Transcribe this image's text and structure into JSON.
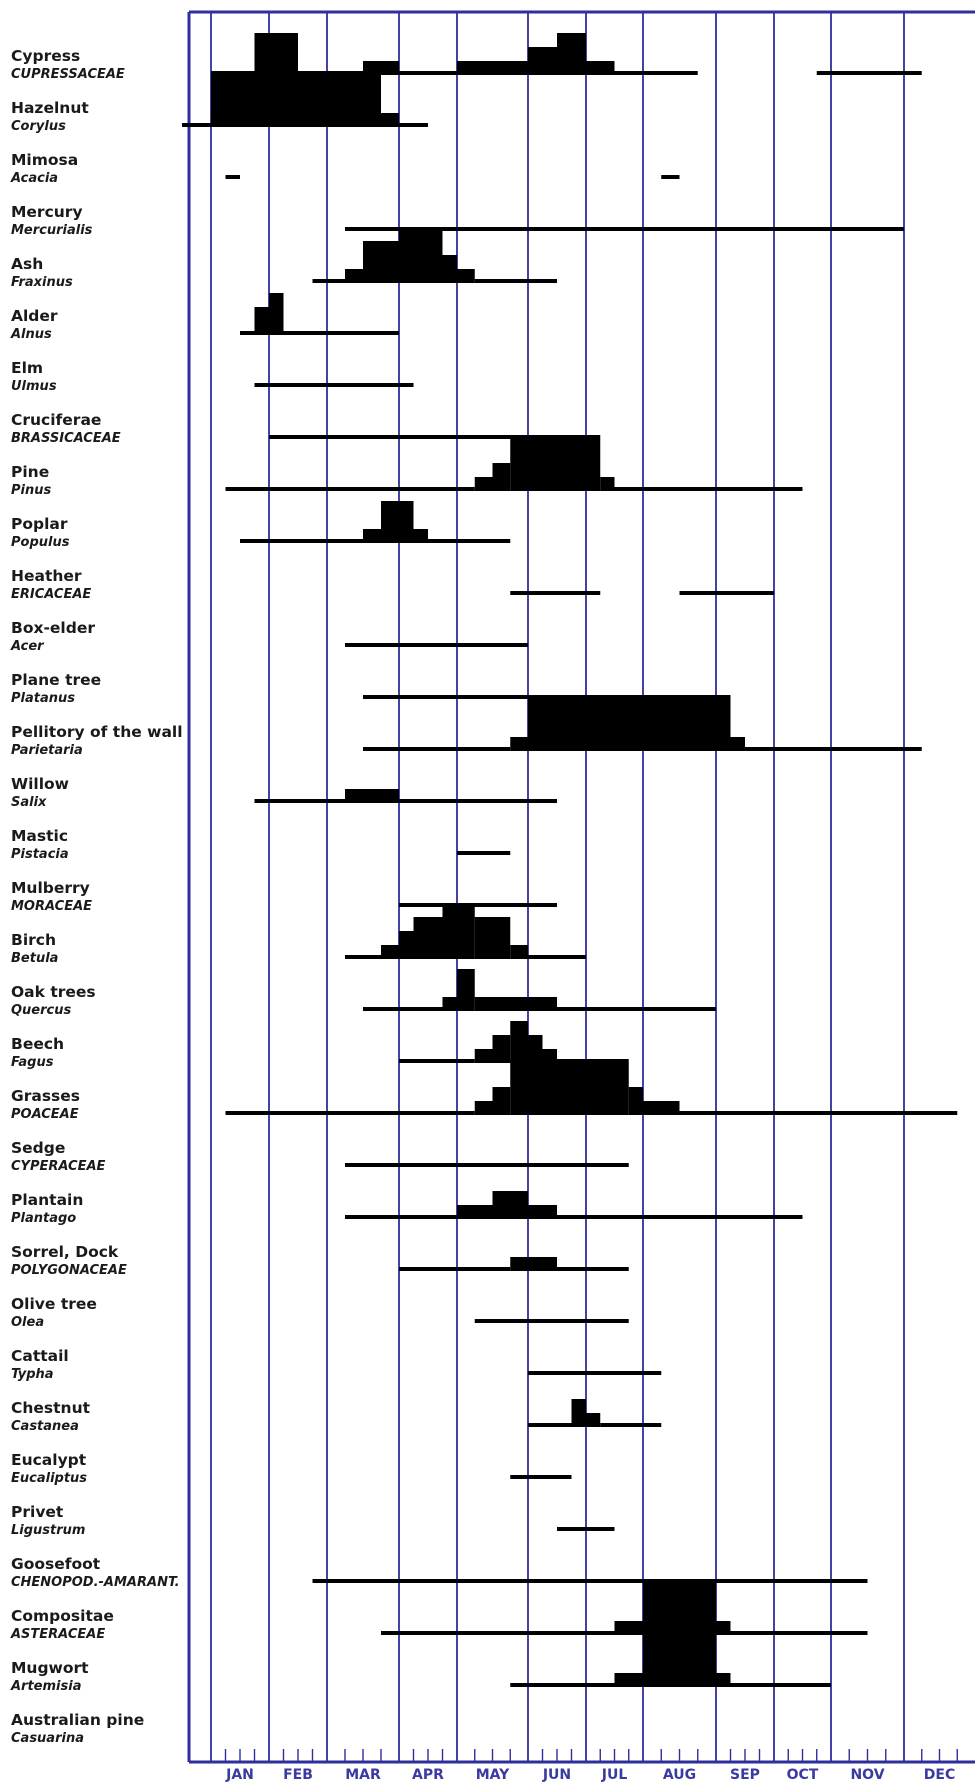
{
  "chart_data": {
    "type": "pollen-calendar",
    "title": "",
    "xlabel": "",
    "ylabel": "",
    "months": [
      "JAN",
      "FEB",
      "MAR",
      "APR",
      "MAY",
      "JUN",
      "JUL",
      "AUG",
      "SEP",
      "OCT",
      "NOV",
      "DEC"
    ],
    "x_unit": "month (0 = start of Jan, 12 = end of Dec)",
    "xlim": [
      -0.6,
      12.7
    ],
    "level_scale": "0 = thin line (low presence), 1-4 = increasing block height (higher concentration)",
    "colors": {
      "frame": "#2e2e9e",
      "marks": "#000000",
      "axis_text": "#3a3aa0"
    },
    "series": [
      {
        "name": "Cypress",
        "family": "CUPRESSACEAE",
        "segments": [
          {
            "start": 0.0,
            "end": 0.75,
            "level": 0
          },
          {
            "start": 0.75,
            "end": 1.5,
            "level": 3
          },
          {
            "start": 1.5,
            "end": 2.5,
            "level": 0
          },
          {
            "start": 2.5,
            "end": 3.0,
            "level": 1
          },
          {
            "start": 3.0,
            "end": 4.0,
            "level": 0
          },
          {
            "start": 4.0,
            "end": 5.0,
            "level": 1
          },
          {
            "start": 5.0,
            "end": 5.5,
            "level": 2
          },
          {
            "start": 5.5,
            "end": 6.0,
            "level": 3
          },
          {
            "start": 6.0,
            "end": 6.5,
            "level": 1
          },
          {
            "start": 6.5,
            "end": 7.75,
            "level": 0
          },
          {
            "start": 9.75,
            "end": 11.25,
            "level": 0
          }
        ]
      },
      {
        "name": "Hazelnut",
        "family": "Corylus",
        "segments": [
          {
            "start": -0.5,
            "end": 0.0,
            "level": 0
          },
          {
            "start": 0.0,
            "end": 2.75,
            "level": 4
          },
          {
            "start": 2.75,
            "end": 3.0,
            "level": 1
          },
          {
            "start": 3.0,
            "end": 3.5,
            "level": 0
          }
        ]
      },
      {
        "name": "Mimosa",
        "family": "Acacia",
        "segments": [
          {
            "start": 0.25,
            "end": 0.5,
            "level": 0
          },
          {
            "start": 7.25,
            "end": 7.5,
            "level": 0
          }
        ]
      },
      {
        "name": "Mercury",
        "family": "Mercurialis",
        "segments": [
          {
            "start": 2.25,
            "end": 11.0,
            "level": 0
          }
        ]
      },
      {
        "name": "Ash",
        "family": "Fraxinus",
        "segments": [
          {
            "start": 1.75,
            "end": 2.25,
            "level": 0
          },
          {
            "start": 2.25,
            "end": 2.5,
            "level": 1
          },
          {
            "start": 2.5,
            "end": 3.0,
            "level": 3
          },
          {
            "start": 3.0,
            "end": 3.75,
            "level": 4
          },
          {
            "start": 3.75,
            "end": 4.0,
            "level": 2
          },
          {
            "start": 4.0,
            "end": 4.25,
            "level": 1
          },
          {
            "start": 4.25,
            "end": 5.5,
            "level": 0
          }
        ]
      },
      {
        "name": "Alder",
        "family": "Alnus",
        "segments": [
          {
            "start": 0.5,
            "end": 0.75,
            "level": 0
          },
          {
            "start": 0.75,
            "end": 1.0,
            "level": 2
          },
          {
            "start": 1.0,
            "end": 1.25,
            "level": 3
          },
          {
            "start": 1.25,
            "end": 3.0,
            "level": 0
          }
        ]
      },
      {
        "name": "Elm",
        "family": "Ulmus",
        "segments": [
          {
            "start": 0.75,
            "end": 3.25,
            "level": 0
          }
        ]
      },
      {
        "name": "Cruciferae",
        "family": "BRASSICACEAE",
        "segments": [
          {
            "start": 1.0,
            "end": 6.0,
            "level": 0
          }
        ]
      },
      {
        "name": "Pine",
        "family": "Pinus",
        "segments": [
          {
            "start": 0.25,
            "end": 4.25,
            "level": 0
          },
          {
            "start": 4.25,
            "end": 4.5,
            "level": 1
          },
          {
            "start": 4.5,
            "end": 4.75,
            "level": 2
          },
          {
            "start": 4.75,
            "end": 6.25,
            "level": 4
          },
          {
            "start": 6.25,
            "end": 6.5,
            "level": 1
          },
          {
            "start": 6.5,
            "end": 9.5,
            "level": 0
          }
        ]
      },
      {
        "name": "Poplar",
        "family": "Populus",
        "segments": [
          {
            "start": 0.5,
            "end": 2.5,
            "level": 0
          },
          {
            "start": 2.5,
            "end": 2.75,
            "level": 1
          },
          {
            "start": 2.75,
            "end": 3.25,
            "level": 3
          },
          {
            "start": 3.25,
            "end": 3.5,
            "level": 1
          },
          {
            "start": 3.5,
            "end": 4.75,
            "level": 0
          }
        ]
      },
      {
        "name": "Heather",
        "family": "ERICACEAE",
        "segments": [
          {
            "start": 4.75,
            "end": 6.25,
            "level": 0
          },
          {
            "start": 7.5,
            "end": 9.0,
            "level": 0
          }
        ]
      },
      {
        "name": "Box-elder",
        "family": "Acer",
        "segments": [
          {
            "start": 2.25,
            "end": 5.0,
            "level": 0
          }
        ]
      },
      {
        "name": "Plane tree",
        "family": "Platanus",
        "segments": [
          {
            "start": 2.5,
            "end": 5.0,
            "level": 0
          }
        ]
      },
      {
        "name": "Pellitory of the wall",
        "family": "Parietaria",
        "segments": [
          {
            "start": 2.5,
            "end": 4.75,
            "level": 0
          },
          {
            "start": 4.75,
            "end": 5.0,
            "level": 1
          },
          {
            "start": 5.0,
            "end": 8.25,
            "level": 4
          },
          {
            "start": 8.25,
            "end": 8.5,
            "level": 1
          },
          {
            "start": 8.5,
            "end": 11.25,
            "level": 0
          }
        ]
      },
      {
        "name": "Willow",
        "family": "Salix",
        "segments": [
          {
            "start": 0.75,
            "end": 2.25,
            "level": 0
          },
          {
            "start": 2.25,
            "end": 3.0,
            "level": 1
          },
          {
            "start": 3.0,
            "end": 5.5,
            "level": 0
          }
        ]
      },
      {
        "name": "Mastic",
        "family": "Pistacia",
        "segments": [
          {
            "start": 4.0,
            "end": 4.75,
            "level": 0
          }
        ]
      },
      {
        "name": "Mulberry",
        "family": "MORACEAE",
        "segments": [
          {
            "start": 3.0,
            "end": 5.5,
            "level": 0
          }
        ]
      },
      {
        "name": "Birch",
        "family": "Betula",
        "segments": [
          {
            "start": 2.25,
            "end": 2.75,
            "level": 0
          },
          {
            "start": 2.75,
            "end": 3.0,
            "level": 1
          },
          {
            "start": 3.0,
            "end": 3.25,
            "level": 2
          },
          {
            "start": 3.25,
            "end": 3.75,
            "level": 3
          },
          {
            "start": 3.75,
            "end": 4.25,
            "level": 4
          },
          {
            "start": 4.25,
            "end": 4.75,
            "level": 3
          },
          {
            "start": 4.75,
            "end": 5.0,
            "level": 1
          },
          {
            "start": 5.0,
            "end": 6.0,
            "level": 0
          }
        ]
      },
      {
        "name": "Oak trees",
        "family": "Quercus",
        "segments": [
          {
            "start": 2.5,
            "end": 3.75,
            "level": 0
          },
          {
            "start": 3.75,
            "end": 4.0,
            "level": 1
          },
          {
            "start": 4.0,
            "end": 4.25,
            "level": 3
          },
          {
            "start": 4.25,
            "end": 5.5,
            "level": 1
          },
          {
            "start": 5.5,
            "end": 8.0,
            "level": 0
          }
        ]
      },
      {
        "name": "Beech",
        "family": "Fagus",
        "segments": [
          {
            "start": 3.0,
            "end": 4.25,
            "level": 0
          },
          {
            "start": 4.25,
            "end": 4.5,
            "level": 1
          },
          {
            "start": 4.5,
            "end": 4.75,
            "level": 2
          },
          {
            "start": 4.75,
            "end": 5.0,
            "level": 3
          },
          {
            "start": 5.0,
            "end": 5.25,
            "level": 2
          },
          {
            "start": 5.25,
            "end": 5.5,
            "level": 1
          },
          {
            "start": 5.5,
            "end": 6.25,
            "level": 0
          }
        ]
      },
      {
        "name": "Grasses",
        "family": "POACEAE",
        "segments": [
          {
            "start": 0.25,
            "end": 4.25,
            "level": 0
          },
          {
            "start": 4.25,
            "end": 4.5,
            "level": 1
          },
          {
            "start": 4.5,
            "end": 4.75,
            "level": 2
          },
          {
            "start": 4.75,
            "end": 6.75,
            "level": 4
          },
          {
            "start": 6.75,
            "end": 7.0,
            "level": 2
          },
          {
            "start": 7.0,
            "end": 7.5,
            "level": 1
          },
          {
            "start": 7.5,
            "end": 11.75,
            "level": 0
          }
        ]
      },
      {
        "name": "Sedge",
        "family": "CYPERACEAE",
        "segments": [
          {
            "start": 2.25,
            "end": 6.75,
            "level": 0
          }
        ]
      },
      {
        "name": "Plantain",
        "family": "Plantago",
        "segments": [
          {
            "start": 2.25,
            "end": 4.0,
            "level": 0
          },
          {
            "start": 4.0,
            "end": 4.5,
            "level": 1
          },
          {
            "start": 4.5,
            "end": 5.0,
            "level": 2
          },
          {
            "start": 5.0,
            "end": 5.5,
            "level": 1
          },
          {
            "start": 5.5,
            "end": 9.5,
            "level": 0
          }
        ]
      },
      {
        "name": "Sorrel, Dock",
        "family": "POLYGONACEAE",
        "segments": [
          {
            "start": 3.0,
            "end": 4.75,
            "level": 0
          },
          {
            "start": 4.75,
            "end": 5.5,
            "level": 1
          },
          {
            "start": 5.5,
            "end": 6.75,
            "level": 0
          }
        ]
      },
      {
        "name": "Olive tree",
        "family": "Olea",
        "segments": [
          {
            "start": 4.25,
            "end": 6.75,
            "level": 0
          }
        ]
      },
      {
        "name": "Cattail",
        "family": "Typha",
        "segments": [
          {
            "start": 5.0,
            "end": 7.25,
            "level": 0
          }
        ]
      },
      {
        "name": "Chestnut",
        "family": "Castanea",
        "segments": [
          {
            "start": 5.0,
            "end": 5.75,
            "level": 0
          },
          {
            "start": 5.75,
            "end": 6.0,
            "level": 2
          },
          {
            "start": 6.0,
            "end": 6.25,
            "level": 1
          },
          {
            "start": 6.25,
            "end": 7.25,
            "level": 0
          }
        ]
      },
      {
        "name": "Eucalypt",
        "family": "Eucaliptus",
        "segments": [
          {
            "start": 4.75,
            "end": 5.75,
            "level": 0
          }
        ]
      },
      {
        "name": "Privet",
        "family": "Ligustrum",
        "segments": [
          {
            "start": 5.5,
            "end": 6.5,
            "level": 0
          }
        ]
      },
      {
        "name": "Goosefoot",
        "family": "CHENOPOD.-AMARANT.",
        "segments": [
          {
            "start": 1.75,
            "end": 10.5,
            "level": 0
          }
        ]
      },
      {
        "name": "Compositae",
        "family": "ASTERACEAE",
        "segments": [
          {
            "start": 2.75,
            "end": 6.5,
            "level": 0
          },
          {
            "start": 6.5,
            "end": 7.0,
            "level": 1
          },
          {
            "start": 7.0,
            "end": 8.0,
            "level": 4
          },
          {
            "start": 8.0,
            "end": 8.25,
            "level": 1
          },
          {
            "start": 8.25,
            "end": 10.5,
            "level": 0
          }
        ]
      },
      {
        "name": "Mugwort",
        "family": "Artemisia",
        "segments": [
          {
            "start": 4.75,
            "end": 6.5,
            "level": 0
          },
          {
            "start": 6.5,
            "end": 7.0,
            "level": 1
          },
          {
            "start": 7.0,
            "end": 8.0,
            "level": 4
          },
          {
            "start": 8.0,
            "end": 8.25,
            "level": 1
          },
          {
            "start": 8.25,
            "end": 10.0,
            "level": 0
          }
        ]
      },
      {
        "name": "Australian pine",
        "family": "Casuarina",
        "segments": []
      }
    ]
  }
}
